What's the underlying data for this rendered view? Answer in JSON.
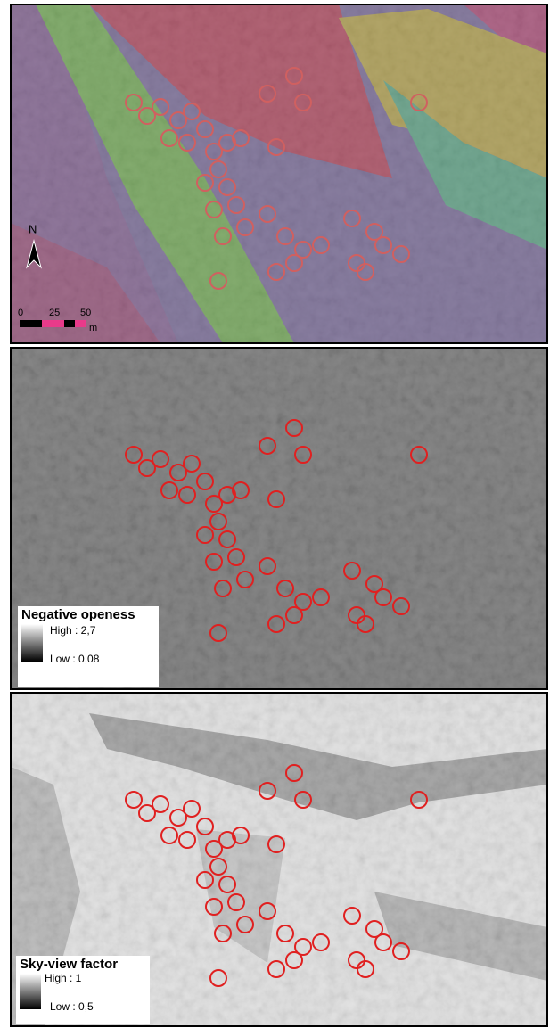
{
  "panels": [
    {
      "north": "N",
      "scale": {
        "ticks": [
          "0",
          "25",
          "50"
        ],
        "unit": "m"
      }
    },
    {
      "legend": {
        "title": "Negative openess",
        "high": "High : 2,7",
        "low": "Low : 0,08"
      }
    },
    {
      "legend": {
        "title": "Sky-view factor",
        "high": "High : 1",
        "low": "Low : 0,5"
      }
    }
  ]
}
